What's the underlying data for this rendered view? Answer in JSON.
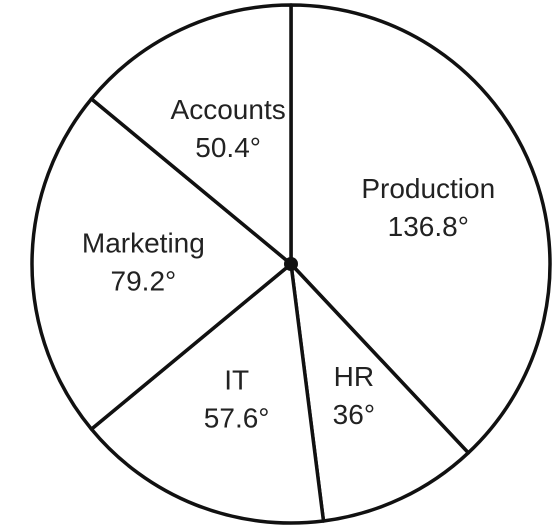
{
  "chart_data": {
    "type": "pie",
    "categories": [
      "Production",
      "HR",
      "IT",
      "Marketing",
      "Accounts"
    ],
    "values": [
      136.8,
      36,
      57.6,
      79.2,
      50.4
    ],
    "value_labels": [
      "136.8°",
      "36°",
      "57.6°",
      "79.2°",
      "50.4°"
    ],
    "color": "#ffffff"
  }
}
